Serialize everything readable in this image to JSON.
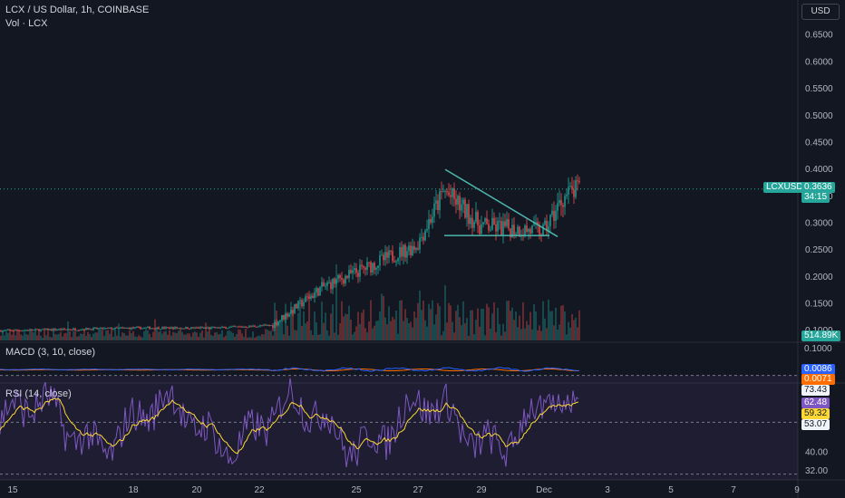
{
  "header": {
    "symbol_line": "LCX / US Dollar, 1h, COINBASE",
    "volume_line": "Vol · LCX",
    "currency": "USD"
  },
  "price_axis": {
    "labels": [
      "0.6500",
      "0.6000",
      "0.5500",
      "0.5000",
      "0.4500",
      "0.4000",
      "0.3500",
      "0.3000",
      "0.2500",
      "0.2000",
      "0.1500",
      "0.1000"
    ],
    "values": [
      0.65,
      0.6,
      0.55,
      0.5,
      0.45,
      0.4,
      0.35,
      0.3,
      0.25,
      0.2,
      0.15,
      0.1
    ]
  },
  "price_badge": {
    "ticker": "LCXUSD",
    "price": "0.3636",
    "countdown": "34:15",
    "volume": "514.89K"
  },
  "macd": {
    "title": "MACD (3, 10, close)",
    "axis_label": "0.1000",
    "macd_value": "0.0086",
    "signal_value": "0.0071"
  },
  "rsi": {
    "title": "RSI (14, close)",
    "upper_band": "73.43",
    "value": "62.48",
    "ma_value": "59.32",
    "lower_band": "53.07",
    "axis_labels": [
      "40.00",
      "32.00"
    ]
  },
  "time_axis": {
    "labels": [
      "15",
      "18",
      "20",
      "22",
      "25",
      "27",
      "29",
      "Dec",
      "3",
      "5",
      "7",
      "9"
    ]
  },
  "colors": {
    "background": "#131722",
    "up": "#26a69a",
    "down": "#ef5350",
    "trendline": "#4db6ac",
    "macd_line": "#2962ff",
    "signal_line": "#ff6d00",
    "rsi_line": "#7e57c2",
    "rsi_ma": "#fdd835"
  },
  "chart_data": [
    {
      "type": "candlestick",
      "title": "LCX / US Dollar, 1h, COINBASE",
      "x": [
        "15",
        "18",
        "20",
        "22",
        "25",
        "27",
        "29",
        "Dec"
      ],
      "close": [
        0.1,
        0.105,
        0.105,
        0.11,
        0.2,
        0.36,
        0.29,
        0.3636
      ],
      "ylim": [
        0.07,
        0.69
      ],
      "last_price": 0.3636,
      "trendlines": [
        {
          "from": [
            "27",
            0.4
          ],
          "to": [
            "Dec",
            0.275
          ]
        },
        {
          "from": [
            "27",
            0.277
          ],
          "to": [
            "Dec",
            0.277
          ]
        }
      ]
    },
    {
      "type": "bar",
      "title": "Vol · LCX",
      "last_value": "514.89K"
    },
    {
      "type": "line",
      "title": "MACD (3, 10, close)",
      "series": [
        {
          "name": "MACD",
          "last": 0.0086
        },
        {
          "name": "Signal",
          "last": 0.0071
        }
      ]
    },
    {
      "type": "line",
      "title": "RSI (14, close)",
      "ylim": [
        28,
        80
      ],
      "bands": [
        73.43,
        53.07
      ],
      "series": [
        {
          "name": "RSI",
          "last": 62.48
        },
        {
          "name": "RSI MA",
          "last": 59.32
        }
      ]
    }
  ]
}
